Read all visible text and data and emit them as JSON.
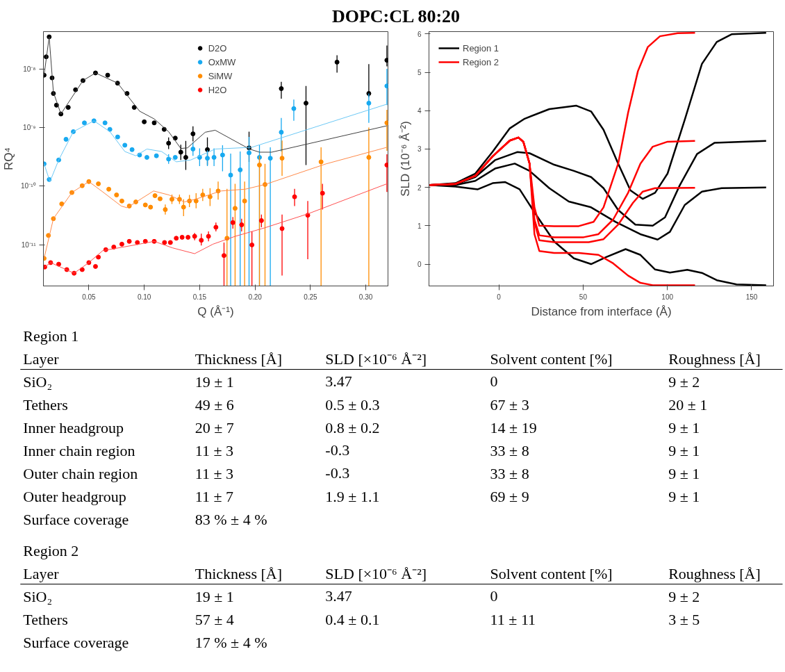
{
  "chart_data": [
    {
      "type": "scatter",
      "title": "DOPC:CL 80:20",
      "xlabel": "Q (Å⁻¹)",
      "ylabel": "RQ⁴",
      "log": true,
      "xlim": [
        0.009,
        0.32
      ],
      "ylim": [
        2e-12,
        4.3e-08
      ],
      "xticks": [
        0.05,
        {
          "value": 0.1,
          "label": "0.10"
        },
        0.15,
        {
          "value": 0.2,
          "label": "0.20"
        },
        0.25,
        {
          "value": 0.3,
          "label": "0.30"
        }
      ],
      "yticks": [
        {
          "value": 1e-11,
          "label": "10⁻¹¹"
        },
        {
          "value": 1e-10,
          "label": "10⁻¹⁰"
        },
        {
          "value": 1e-09,
          "label": "10⁻⁹"
        },
        {
          "value": 1e-08,
          "label": "10⁻⁸"
        }
      ],
      "legend": "top",
      "series": [
        {
          "name": "D2O",
          "color": "#000000",
          "type": "scatter",
          "marker": "circle",
          "x": [
            0.0096,
            0.0115,
            0.0142,
            0.0168,
            0.018,
            0.0208,
            0.0248,
            0.0314,
            0.038,
            0.0447,
            0.056,
            0.067,
            0.0759,
            0.0845,
            0.091,
            0.1,
            0.109,
            0.118,
            0.122,
            0.128,
            0.133,
            0.1375,
            0.144,
            0.157,
            0.1946,
            0.2237,
            0.246,
            0.274,
            0.3027,
            0.319
          ],
          "values": [
            7.8e-09,
            1.6e-08,
            3.5e-08,
            7e-09,
            3.8e-09,
            2.4e-09,
            1.7e-09,
            2.2e-09,
            4.4e-09,
            6.3e-09,
            8.5e-09,
            7.8e-09,
            5.7e-09,
            3.8e-09,
            2.2e-09,
            1.25e-09,
            1.2e-09,
            9.3e-10,
            5.4e-10,
            6.6e-10,
            3.8e-10,
            3.1e-10,
            7.8e-10,
            4.2e-10,
            4.5e-10,
            4.6e-09,
            2.6e-09,
            1.3e-08,
            3.8e-09,
            1.4e-08
          ],
          "errors": [
            null,
            null,
            null,
            null,
            null,
            null,
            null,
            null,
            null,
            null,
            null,
            null,
            null,
            null,
            null,
            null,
            null,
            null,
            [
              4.3e-10,
              6.8e-10
            ],
            null,
            [
              2.8e-10,
              5.1e-10
            ],
            [
              1.9e-10,
              5.9e-10
            ],
            [
              5.8e-10,
              1.05e-09
            ],
            [
              2.3e-10,
              6.8e-10
            ],
            [
              2.6e-10,
              8.5e-10
            ],
            [
              3.1e-09,
              6e-09
            ],
            [
              2.3e-10,
              5.1e-09
            ],
            [
              8.6e-09,
              1.7e-08
            ],
            [
              3.3e-09,
              1.2e-08
            ],
            [
              1.1e-08,
              2.5e-08
            ]
          ]
        },
        {
          "name": "OxMW",
          "color": "#17a9f0",
          "type": "scatter",
          "marker": "circle",
          "x": [
            0.0096,
            0.0142,
            0.0228,
            0.0294,
            0.036,
            0.046,
            0.0546,
            0.0646,
            0.069,
            0.076,
            0.0825,
            0.089,
            0.0958,
            0.1024,
            0.111,
            0.122,
            0.128,
            0.1375,
            0.144,
            0.15,
            0.157,
            0.163,
            0.1707,
            0.178,
            0.1866,
            0.1946,
            0.204,
            0.2138,
            0.2237,
            0.235,
            0.3027,
            0.319
          ],
          "values": [
            2.4e-10,
            1.3e-10,
            2.8e-10,
            6.3e-10,
            8.5e-10,
            1.2e-09,
            1.3e-09,
            1.2e-09,
            9.3e-10,
            6.9e-10,
            5e-10,
            4.2e-10,
            3.4e-10,
            3.1e-10,
            3.3e-10,
            2.9e-10,
            3.1e-10,
            null,
            4.3e-10,
            3.1e-10,
            3e-10,
            3.1e-10,
            3.4e-10,
            1.55e-10,
            1.9e-10,
            3.7e-10,
            3.1e-10,
            3e-10,
            8.3e-10,
            2.1e-09,
            2.6e-09,
            5.1e-09
          ],
          "errors": [
            null,
            null,
            null,
            null,
            null,
            null,
            null,
            null,
            null,
            null,
            null,
            null,
            null,
            null,
            null,
            [
              2.4e-10,
              3.5e-10
            ],
            null,
            null,
            [
              3.3e-10,
              5.6e-10
            ],
            [
              2.2e-10,
              4.4e-10
            ],
            [
              2.2e-10,
              4.1e-10
            ],
            [
              2.2e-10,
              4.4e-10
            ],
            [
              1.8e-10,
              5e-10
            ],
            [
              2e-12,
              3.6e-10
            ],
            [
              2e-12,
              3.9e-10
            ],
            [
              2e-12,
              6.9e-10
            ],
            [
              2e-12,
              5e-10
            ],
            [
              2e-12,
              4.6e-10
            ],
            [
              3.9e-10,
              1.45e-09
            ],
            [
              1.3e-09,
              3e-09
            ],
            [
              1.2e-09,
              3.8e-09
            ],
            [
              2.4e-09,
              1e-08
            ]
          ]
        },
        {
          "name": "SiMW",
          "color": "#ff8c00",
          "type": "scatter",
          "marker": "circle",
          "x": [
            0.0096,
            0.0135,
            0.018,
            0.0255,
            0.0347,
            0.044,
            0.05,
            0.0586,
            0.068,
            0.075,
            0.0798,
            0.0865,
            0.0924,
            0.101,
            0.1057,
            0.1097,
            0.1143,
            0.119,
            0.125,
            0.1318,
            0.1355,
            0.1408,
            0.1468,
            0.1528,
            0.1594,
            0.1667,
            0.1747,
            0.182,
            0.1906,
            0.204,
            0.209,
            0.2244,
            0.2596,
            0.3027,
            0.319
          ],
          "values": [
            5.9e-12,
            1.45e-11,
            2.8e-11,
            5e-11,
            7.8e-11,
            1.02e-10,
            1.2e-10,
            1.1e-10,
            8.9e-11,
            7.1e-11,
            5.6e-11,
            4.6e-11,
            5.4e-11,
            4.8e-11,
            4.4e-11,
            6.9e-11,
            6.1e-11,
            4e-11,
            6e-11,
            6e-11,
            4.4e-11,
            5.6e-11,
            5.6e-11,
            7.1e-11,
            6.6e-11,
            8.3e-11,
            1.3e-11,
            4.2e-11,
            5.6e-11,
            2.3e-10,
            1.07e-10,
            3e-10,
            2.6e-10,
            3.1e-10,
            1.2e-09
          ],
          "errors": [
            null,
            null,
            null,
            null,
            null,
            null,
            null,
            null,
            null,
            null,
            null,
            null,
            null,
            null,
            null,
            null,
            null,
            [
              3.3e-11,
              4.9e-11
            ],
            [
              5e-11,
              7.2e-11
            ],
            [
              5e-11,
              7.2e-11
            ],
            [
              3.1e-11,
              6e-11
            ],
            [
              4.4e-11,
              7.1e-11
            ],
            [
              4.2e-11,
              7.6e-11
            ],
            [
              5.6e-11,
              9e-11
            ],
            [
              4.6e-11,
              9.3e-11
            ],
            [
              5.9e-11,
              1.2e-10
            ],
            [
              2e-12,
              9e-11
            ],
            [
              2e-12,
              1.1e-10
            ],
            [
              2e-12,
              1.2e-10
            ],
            [
              2e-12,
              3.3e-10
            ],
            [
              2e-12,
              2.4e-10
            ],
            [
              1.5e-10,
              6e-10
            ],
            [
              2e-12,
              4.6e-10
            ],
            [
              2e-12,
              1e-09
            ],
            [
              4e-10,
              2e-09
            ]
          ]
        },
        {
          "name": "H2O",
          "color": "#ff0000",
          "type": "scatter",
          "marker": "circle",
          "x": [
            0.0102,
            0.0155,
            0.0228,
            0.0301,
            0.0367,
            0.044,
            0.05,
            0.056,
            0.0586,
            0.0653,
            0.0725,
            0.0798,
            0.0865,
            0.0938,
            0.101,
            0.109,
            0.1183,
            0.1236,
            0.1289,
            0.1342,
            0.1395,
            0.1455,
            0.1515,
            0.158,
            0.1647,
            0.172,
            0.18,
            0.1879,
            0.1972,
            0.2058,
            0.2244,
            0.2357,
            0.2476,
            0.2609,
            0.319
          ],
          "values": [
            4.2e-12,
            5e-12,
            4.7e-12,
            3.8e-12,
            3.3e-12,
            3.8e-12,
            5e-12,
            4.3e-12,
            6.2e-12,
            8.3e-12,
            9.2e-12,
            1.03e-11,
            1.15e-11,
            1.1e-11,
            1.15e-11,
            1.15e-11,
            1.1e-11,
            1.1e-11,
            1.3e-11,
            1.35e-11,
            1.35e-11,
            1.4e-11,
            1.2e-11,
            1.4e-11,
            2e-11,
            6.6e-12,
            2.4e-11,
            2.2e-11,
            1e-11,
            2.6e-11,
            1.9e-11,
            6.6e-11,
            3.2e-11,
            7.6e-11,
            2.3e-10
          ],
          "errors": [
            null,
            null,
            null,
            null,
            null,
            null,
            null,
            null,
            null,
            null,
            null,
            null,
            null,
            null,
            null,
            null,
            null,
            null,
            null,
            null,
            null,
            [
              1.2e-11,
              1.6e-11
            ],
            [
              9.8e-12,
              1.55e-11
            ],
            [
              1.15e-11,
              1.7e-11
            ],
            [
              1.7e-11,
              2.4e-11
            ],
            [
              2e-12,
              1.1e-11
            ],
            [
              1.9e-11,
              3e-11
            ],
            [
              1.7e-11,
              2.8e-11
            ],
            [
              2e-12,
              1.7e-11
            ],
            [
              2e-11,
              3.3e-11
            ],
            [
              3e-12,
              3.3e-11
            ],
            [
              4.6e-11,
              9e-11
            ],
            [
              5.7e-12,
              5.6e-11
            ],
            [
              4e-11,
              1.1e-10
            ],
            [
              8e-11,
              3.5e-10
            ]
          ]
        },
        {
          "color": "#404040",
          "type": "line",
          "x": [
            0.0096,
            0.0142,
            0.018,
            0.0248,
            0.0447,
            0.056,
            0.076,
            0.0958,
            0.109,
            0.122,
            0.133,
            0.139,
            0.155,
            0.164,
            0.195,
            0.204,
            0.215,
            0.319
          ],
          "values": [
            7.8e-09,
            3.5e-08,
            4e-09,
            1.7e-09,
            6.3e-09,
            8.5e-09,
            5.7e-09,
            1.9e-09,
            1.4e-09,
            8.5e-10,
            4.4e-10,
            4.5e-10,
            8.3e-10,
            9e-10,
            4.3e-10,
            3.8e-10,
            3.8e-10,
            1.07e-09
          ]
        },
        {
          "color": "#6cc8f5",
          "type": "line",
          "x": [
            0.0096,
            0.0149,
            0.0228,
            0.036,
            0.0546,
            0.069,
            0.0825,
            0.0924,
            0.1024,
            0.1157,
            0.129,
            0.142,
            0.164,
            0.197,
            0.319
          ],
          "values": [
            2.4e-10,
            1.2e-10,
            2.8e-10,
            8.5e-10,
            1.3e-09,
            8.5e-10,
            3.9e-10,
            3.3e-10,
            4.3e-10,
            3.9e-10,
            2.6e-10,
            2.8e-10,
            4.3e-10,
            4.6e-10,
            2.5e-09
          ]
        },
        {
          "color": "#ff8a4a",
          "type": "line",
          "x": [
            0.0096,
            0.018,
            0.0347,
            0.05,
            0.0626,
            0.0792,
            0.0845,
            0.1084,
            0.1223,
            0.1362,
            0.1462,
            0.1694,
            0.1912,
            0.2005,
            0.209,
            0.264,
            0.319
          ],
          "values": [
            5.9e-12,
            2.8e-11,
            7.8e-11,
            1.2e-10,
            8e-11,
            4.6e-11,
            4.3e-11,
            8.3e-11,
            7.1e-11,
            5.4e-11,
            6e-11,
            8.3e-11,
            8.9e-11,
            9.8e-11,
            1.07e-10,
            2.4e-10,
            4.6e-10
          ]
        },
        {
          "color": "#ff5050",
          "type": "line",
          "x": [
            0.0102,
            0.0155,
            0.0367,
            0.05,
            0.0626,
            0.0825,
            0.109,
            0.1256,
            0.1455,
            0.162,
            0.182,
            0.2085,
            0.248,
            0.319
          ],
          "values": [
            4.2e-12,
            5e-12,
            3.3e-12,
            5e-12,
            8e-12,
            9.3e-12,
            1.15e-11,
            8.9e-12,
            7.1e-12,
            1.03e-11,
            1.4e-11,
            1.95e-11,
            3.4e-11,
            1.1e-10
          ]
        }
      ]
    },
    {
      "type": "line",
      "xlabel": "Distance from interface (Å)",
      "ylabel": "SLD (10⁻⁶ Å⁻²)",
      "xlim": [
        -41.5,
        163
      ],
      "ylim": [
        -0.57,
        6.06
      ],
      "xticks": [
        0,
        50,
        100,
        150
      ],
      "yticks": [
        0,
        1,
        2,
        3,
        4,
        5,
        6
      ],
      "legend": "top left",
      "series": [
        {
          "name": "Region 1",
          "color": "#000000",
          "x": [
            -41,
            -25.7,
            -14,
            -3.7,
            6.5,
            15.3,
            29.9,
            46,
            54.7,
            62.1,
            70.8,
            78.1,
            85.4,
            92.7,
            100.1,
            110.3,
            120.5,
            129.3,
            138.1,
            158.6
          ],
          "values": [
            2.06,
            2.11,
            2.36,
            2.93,
            3.54,
            3.79,
            4.04,
            4.13,
            3.98,
            3.5,
            2.62,
            1.92,
            1.7,
            1.86,
            2.36,
            3.76,
            5.22,
            5.79,
            5.99,
            6.03
          ]
        },
        {
          "color": "#000000",
          "x": [
            -41,
            -25.7,
            -14,
            -2.3,
            10.9,
            18.2,
            32.8,
            44.5,
            54.7,
            62.1,
            70.8,
            81,
            91.3,
            98.6,
            107.3,
            117.6,
            127.9,
            158.6
          ],
          "values": [
            2.06,
            2.08,
            2.27,
            2.71,
            2.92,
            2.89,
            2.59,
            2.43,
            2.27,
            1.98,
            1.41,
            1.03,
            1.0,
            1.22,
            2.05,
            2.87,
            3.16,
            3.21
          ]
        },
        {
          "color": "#000000",
          "x": [
            -41,
            -25.7,
            -14,
            -2.3,
            9.4,
            18.2,
            29.9,
            41.5,
            54.7,
            69.3,
            83.9,
            94.2,
            101.5,
            110.3,
            120.5,
            132.2,
            158.6
          ],
          "values": [
            2.06,
            2.06,
            2.17,
            2.49,
            2.62,
            2.43,
            1.98,
            1.63,
            1.48,
            1.1,
            0.78,
            0.64,
            0.84,
            1.54,
            1.89,
            1.98,
            2.0
          ]
        },
        {
          "color": "#000000",
          "x": [
            -41,
            -25.7,
            -12.5,
            -3.7,
            3.6,
            12.3,
            21.1,
            32.8,
            44.5,
            54.7,
            63.5,
            75.2,
            84,
            92.7,
            101.5,
            111.8,
            120.5,
            129.3,
            141,
            158.6
          ],
          "values": [
            2.06,
            2.02,
            1.95,
            2.11,
            2.14,
            1.95,
            1.35,
            0.59,
            0.15,
            0.0,
            0.18,
            0.39,
            0.24,
            -0.14,
            -0.22,
            -0.15,
            -0.23,
            -0.42,
            -0.53,
            -0.55
          ]
        },
        {
          "name": "Region 2",
          "color": "#ff0000",
          "x": [
            -41,
            -25.7,
            -14,
            -3.7,
            6.5,
            11.6,
            14.5,
            18.2,
            21.1,
            24,
            32.8,
            47.4,
            56.2,
            62.1,
            70.8,
            76.7,
            82.5,
            88.4,
            95.6,
            106.1,
            116.4
          ],
          "values": [
            2.06,
            2.09,
            2.3,
            2.81,
            3.22,
            3.3,
            3.19,
            2.62,
            1.48,
            1.0,
            0.99,
            0.99,
            1.1,
            1.48,
            2.62,
            3.95,
            5.03,
            5.66,
            5.94,
            6.02,
            6.03
          ]
        },
        {
          "color": "#ff0000",
          "x": [
            -41,
            -25.7,
            -14,
            -3.7,
            6.5,
            11.6,
            14.5,
            18.2,
            21.1,
            24,
            32.8,
            50.3,
            59.1,
            67.8,
            76.7,
            84,
            91.3,
            100.1,
            116.4
          ],
          "values": [
            2.06,
            2.09,
            2.3,
            2.81,
            3.22,
            3.3,
            3.19,
            2.62,
            1.16,
            0.75,
            0.7,
            0.7,
            0.78,
            1.16,
            1.86,
            2.62,
            3.06,
            3.19,
            3.21
          ]
        },
        {
          "color": "#ff0000",
          "x": [
            -41,
            -25.7,
            -14,
            -3.7,
            6.5,
            11.6,
            14.5,
            18.2,
            21.1,
            24,
            32.8,
            53.3,
            62.1,
            70.8,
            79.6,
            85.4,
            92.7,
            116.4
          ],
          "values": [
            2.06,
            2.09,
            2.3,
            2.81,
            3.22,
            3.3,
            3.19,
            2.62,
            1.1,
            0.62,
            0.57,
            0.57,
            0.65,
            1.03,
            1.6,
            1.89,
            1.98,
            1.99
          ]
        },
        {
          "color": "#ff0000",
          "x": [
            -41,
            -25.7,
            -14,
            -3.7,
            6.5,
            11.6,
            14.5,
            18.2,
            21.1,
            24,
            32.8,
            47.4,
            59.1,
            67.8,
            76.7,
            84,
            91.3,
            116.4
          ],
          "values": [
            2.06,
            2.09,
            2.3,
            2.81,
            3.22,
            3.3,
            3.19,
            2.62,
            0.78,
            0.34,
            0.29,
            0.29,
            0.24,
            0.02,
            -0.3,
            -0.49,
            -0.55,
            -0.55
          ]
        }
      ]
    },
    {
      "type": "other",
      "title": "Region 1",
      "categories": [
        "Layer",
        "Thickness [Å]",
        "SLD [×10⁻⁶ Å⁻²]",
        "Solvent content [%]",
        "Roughness [Å]"
      ],
      "annotations": [
        "SiO₂",
        "19 ± 1",
        "3.47",
        "0",
        "9 ± 2",
        "Tethers",
        "49 ± 6",
        "0.5 ± 0.3",
        "67 ± 3",
        "20 ± 1",
        "Inner headgroup",
        "20 ± 7",
        "0.8 ± 0.2",
        "14 ± 19",
        "9 ± 1",
        "Inner chain region",
        "11 ± 3",
        "-0.3",
        "33 ± 8",
        "9 ± 1",
        "Outer chain region",
        "11 ± 3",
        "-0.3",
        "33 ± 8",
        "9 ± 1",
        "Outer headgroup",
        "11 ± 7",
        "1.9 ± 1.1",
        "69 ± 9",
        "9 ± 1",
        "Surface coverage",
        "83 % ± 4 %",
        null,
        null,
        null
      ]
    },
    {
      "type": "other",
      "title": "Region 2",
      "categories": [
        "Layer",
        "Thickness [Å]",
        "SLD [×10⁻⁶ Å⁻²]",
        "Solvent content [%]",
        "Roughness [Å]"
      ],
      "annotations": [
        "SiO₂",
        "19 ± 1",
        "3.47",
        "0",
        "9 ± 2",
        "Tethers",
        "57 ± 4",
        "0.4 ± 0.1",
        "11 ± 11",
        "3 ± 5",
        "Surface coverage",
        "17 % ± 4 %",
        null,
        null,
        null
      ]
    }
  ]
}
